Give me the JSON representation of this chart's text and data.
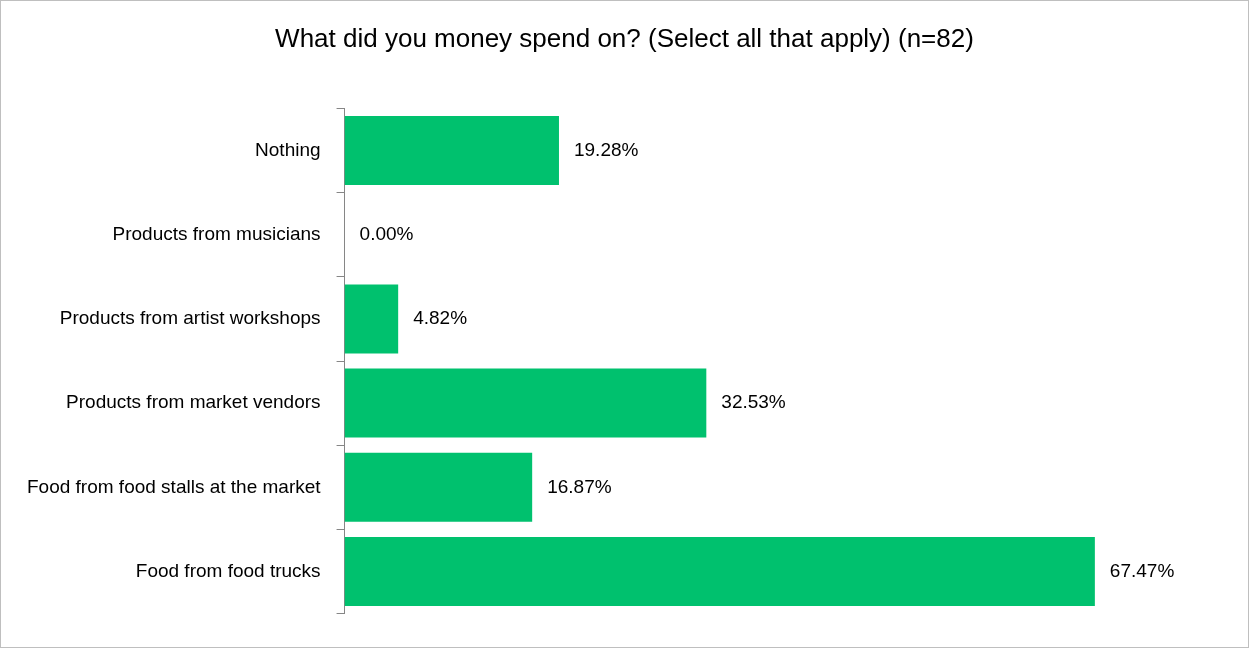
{
  "chart_data": {
    "type": "bar",
    "orientation": "horizontal",
    "title": "What did you money spend on? (Select all that apply) (n=82)",
    "categories": [
      "Nothing",
      "Products from musicians",
      "Products from artist workshops",
      "Products from market vendors",
      "Food from food stalls at the market",
      "Food from food trucks"
    ],
    "values": [
      19.28,
      0,
      4.82,
      32.53,
      16.87,
      67.47
    ],
    "value_labels": [
      "19.28%",
      "0.00%",
      "4.82%",
      "32.53%",
      "16.87%",
      "67.47%"
    ],
    "color": "#00c16e",
    "tick_labels": "y",
    "grid": false,
    "legend": false
  }
}
